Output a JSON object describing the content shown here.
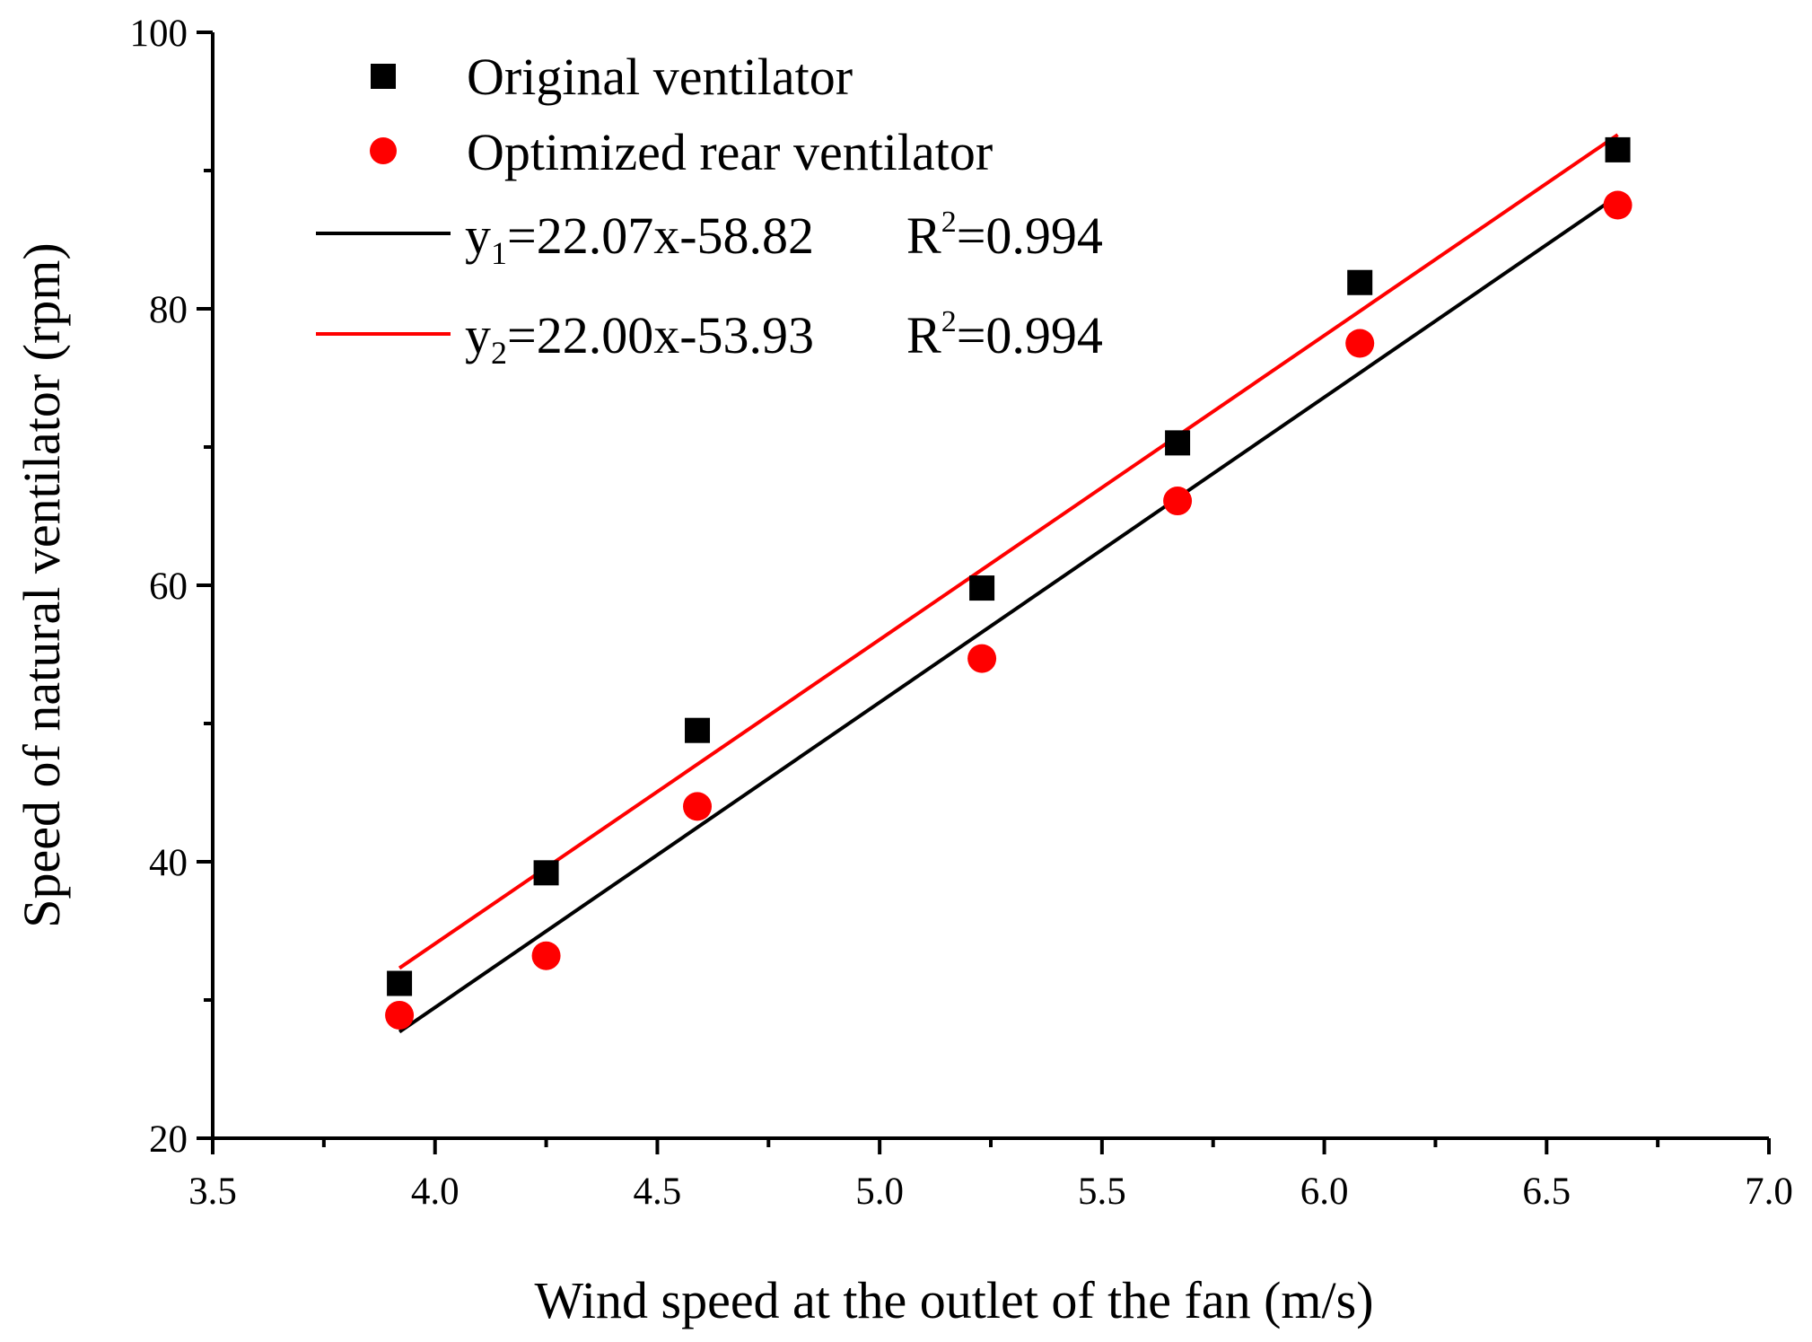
{
  "chart_data": {
    "type": "scatter",
    "title": "",
    "xlabel": "Wind speed at the outlet of the fan (m/s)",
    "ylabel": "Speed of natural ventilator (rpm)",
    "xlim": [
      3.5,
      7.0
    ],
    "ylim": [
      20,
      100
    ],
    "x_ticks": [
      "3.5",
      "4.0",
      "4.5",
      "5.0",
      "5.5",
      "6.0",
      "6.5",
      "7.0"
    ],
    "y_ticks": [
      "20",
      "40",
      "60",
      "80",
      "100"
    ],
    "grid": false,
    "legend_position": "top-left",
    "series": [
      {
        "name": "Original ventilator",
        "marker": "square",
        "color": "#000000",
        "x": [
          3.92,
          4.25,
          4.59,
          5.23,
          5.67,
          6.08,
          6.66
        ],
        "y": [
          31.2,
          39.2,
          49.5,
          59.8,
          70.3,
          81.9,
          91.5
        ]
      },
      {
        "name": "Optimized rear ventilator",
        "marker": "circle",
        "color": "#ff0000",
        "x": [
          3.92,
          4.25,
          4.59,
          5.23,
          5.67,
          6.08,
          6.66
        ],
        "y": [
          28.9,
          33.2,
          44.0,
          54.7,
          66.1,
          77.5,
          87.5
        ]
      }
    ],
    "fits": [
      {
        "name": "y1 fit",
        "color": "#000000",
        "slope": 22.07,
        "intercept": -58.82,
        "x_range": [
          3.92,
          6.66
        ],
        "label": {
          "var": "y",
          "sub": "1",
          "eq": "=22.07x-58.82",
          "r": "R",
          "sup": "2",
          "r_val": "=0.994"
        }
      },
      {
        "name": "y2 fit",
        "color": "#ff0000",
        "slope": 22.0,
        "intercept": -53.93,
        "x_range": [
          3.92,
          6.66
        ],
        "label": {
          "var": "y",
          "sub": "2",
          "eq": "=22.00x-53.93",
          "r": "R",
          "sup": "2",
          "r_val": "=0.994"
        }
      }
    ]
  }
}
